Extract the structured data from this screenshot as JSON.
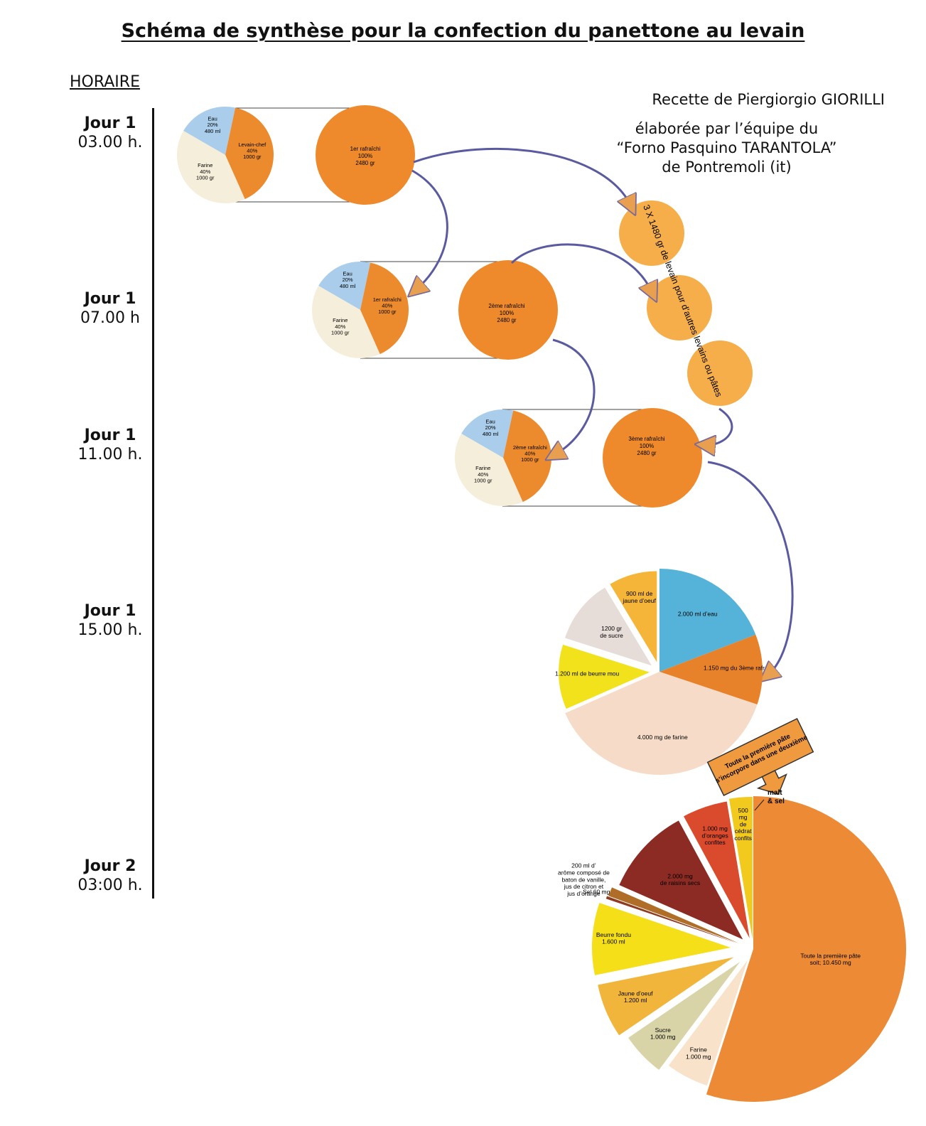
{
  "title": "Schéma de synthèse pour la confection du panettone au levain",
  "horaire_label": "HORAIRE",
  "credit": {
    "line1": "Recette de  Piergiorgio GIORILLI",
    "line2": "élaborée par l’équipe du",
    "line3": "“Forno Pasquino TARANTOLA”",
    "line4": "de Pontremoli (it)"
  },
  "schedule": [
    {
      "day": "Jour 1",
      "time": "03.00 h."
    },
    {
      "day": "Jour 1",
      "time": "07.00 h"
    },
    {
      "day": "Jour 1",
      "time": "11.00 h."
    },
    {
      "day": "Jour 1",
      "time": "15.00 h."
    },
    {
      "day": "Jour 2",
      "time": "03:00 h."
    }
  ],
  "steps": {
    "step1": {
      "pie": [
        {
          "label": "Eau\n20%\n480 ml",
          "value": 20,
          "color": "#a9cdea"
        },
        {
          "label": "Levain-chef\n40%\n1000 gr",
          "value": 40,
          "color": "#ec8a2e"
        },
        {
          "label": "Farine\n40%\n1000 gr",
          "value": 40,
          "color": "#f5eedb"
        }
      ],
      "result": "1er rafraîchi\n100%\n2480 gr"
    },
    "step2": {
      "pie": [
        {
          "label": "Eau\n20%\n480 ml",
          "value": 20,
          "color": "#a9cdea"
        },
        {
          "label": "1er rafraîchi\n40%\n1000 gr",
          "value": 40,
          "color": "#ec8a2e"
        },
        {
          "label": "Farine\n40%\n1000 gr",
          "value": 40,
          "color": "#f5eedb"
        }
      ],
      "result": "2ème rafraîchi\n100%\n2480 gr"
    },
    "step3": {
      "pie": [
        {
          "label": "Eau\n20%\n480 ml",
          "value": 20,
          "color": "#a9cdea"
        },
        {
          "label": "2ème rafraîchi\n40%\n1000 gr",
          "value": 40,
          "color": "#ec8a2e"
        },
        {
          "label": "Farine\n40%\n1000 gr",
          "value": 40,
          "color": "#f5eedb"
        }
      ],
      "result": "3ème rafraîchi\n100%\n2480 gr"
    }
  },
  "side_levain_label": "3 X 1480 gr de levain pour d’autres levains ou pâtes",
  "pie_first_dough": {
    "segments": [
      {
        "label": "2.000 ml d’eau",
        "value": 2000,
        "color": "#55b3d9"
      },
      {
        "label": "1.150 mg du 3ème rafr",
        "value": 1150,
        "color": "#e8822a"
      },
      {
        "label": "4.000 mg de farine",
        "value": 4000,
        "color": "#f6dcc8"
      },
      {
        "label": "1.200 ml de beurre mou",
        "value": 1200,
        "color": "#f2e21c"
      },
      {
        "label": "1200 gr\nde sucre",
        "value": 1200,
        "color": "#e6dcd8"
      },
      {
        "label": "900 ml de\njaune d’oeuf",
        "value": 900,
        "color": "#f4b538"
      }
    ]
  },
  "callout": "Toute la première pâte\ns’incorpore dans une deuxième",
  "malt_label": "malt\n& sel",
  "pie_second_dough": {
    "segments": [
      {
        "label": "Toute la première pâte\nsoit; 10.450 mg",
        "value": 10450,
        "color": "#ec8a36"
      },
      {
        "label": "Farine\n1.000 mg",
        "value": 1000,
        "color": "#f8e2ca"
      },
      {
        "label": "Sucre\n1.000 mg",
        "value": 1000,
        "color": "#d9d4a8"
      },
      {
        "label": "Jaune d’oeuf\n1.200 ml",
        "value": 1200,
        "color": "#f2b53c"
      },
      {
        "label": "Beurre fondu\n1.600 ml",
        "value": 1600,
        "color": "#f5df19"
      },
      {
        "label": "Sel 60 mg",
        "value": 60,
        "color": "#8f3b20"
      },
      {
        "label": "200 ml  d’\narôme composé de\nbaton de vanille,\njus de citron et\njus d’orange",
        "value": 200,
        "color": "#b06d28"
      },
      {
        "label": "2.000 mg\nde raisins secs",
        "value": 2000,
        "color": "#8b2b23"
      },
      {
        "label": "1.000 mg\nd’oranges\nconfites",
        "value": 1000,
        "color": "#d94b2c"
      },
      {
        "label": "500\nmg\nde\ncédrat\nconfits",
        "value": 500,
        "color": "#f2c91d"
      }
    ]
  }
}
